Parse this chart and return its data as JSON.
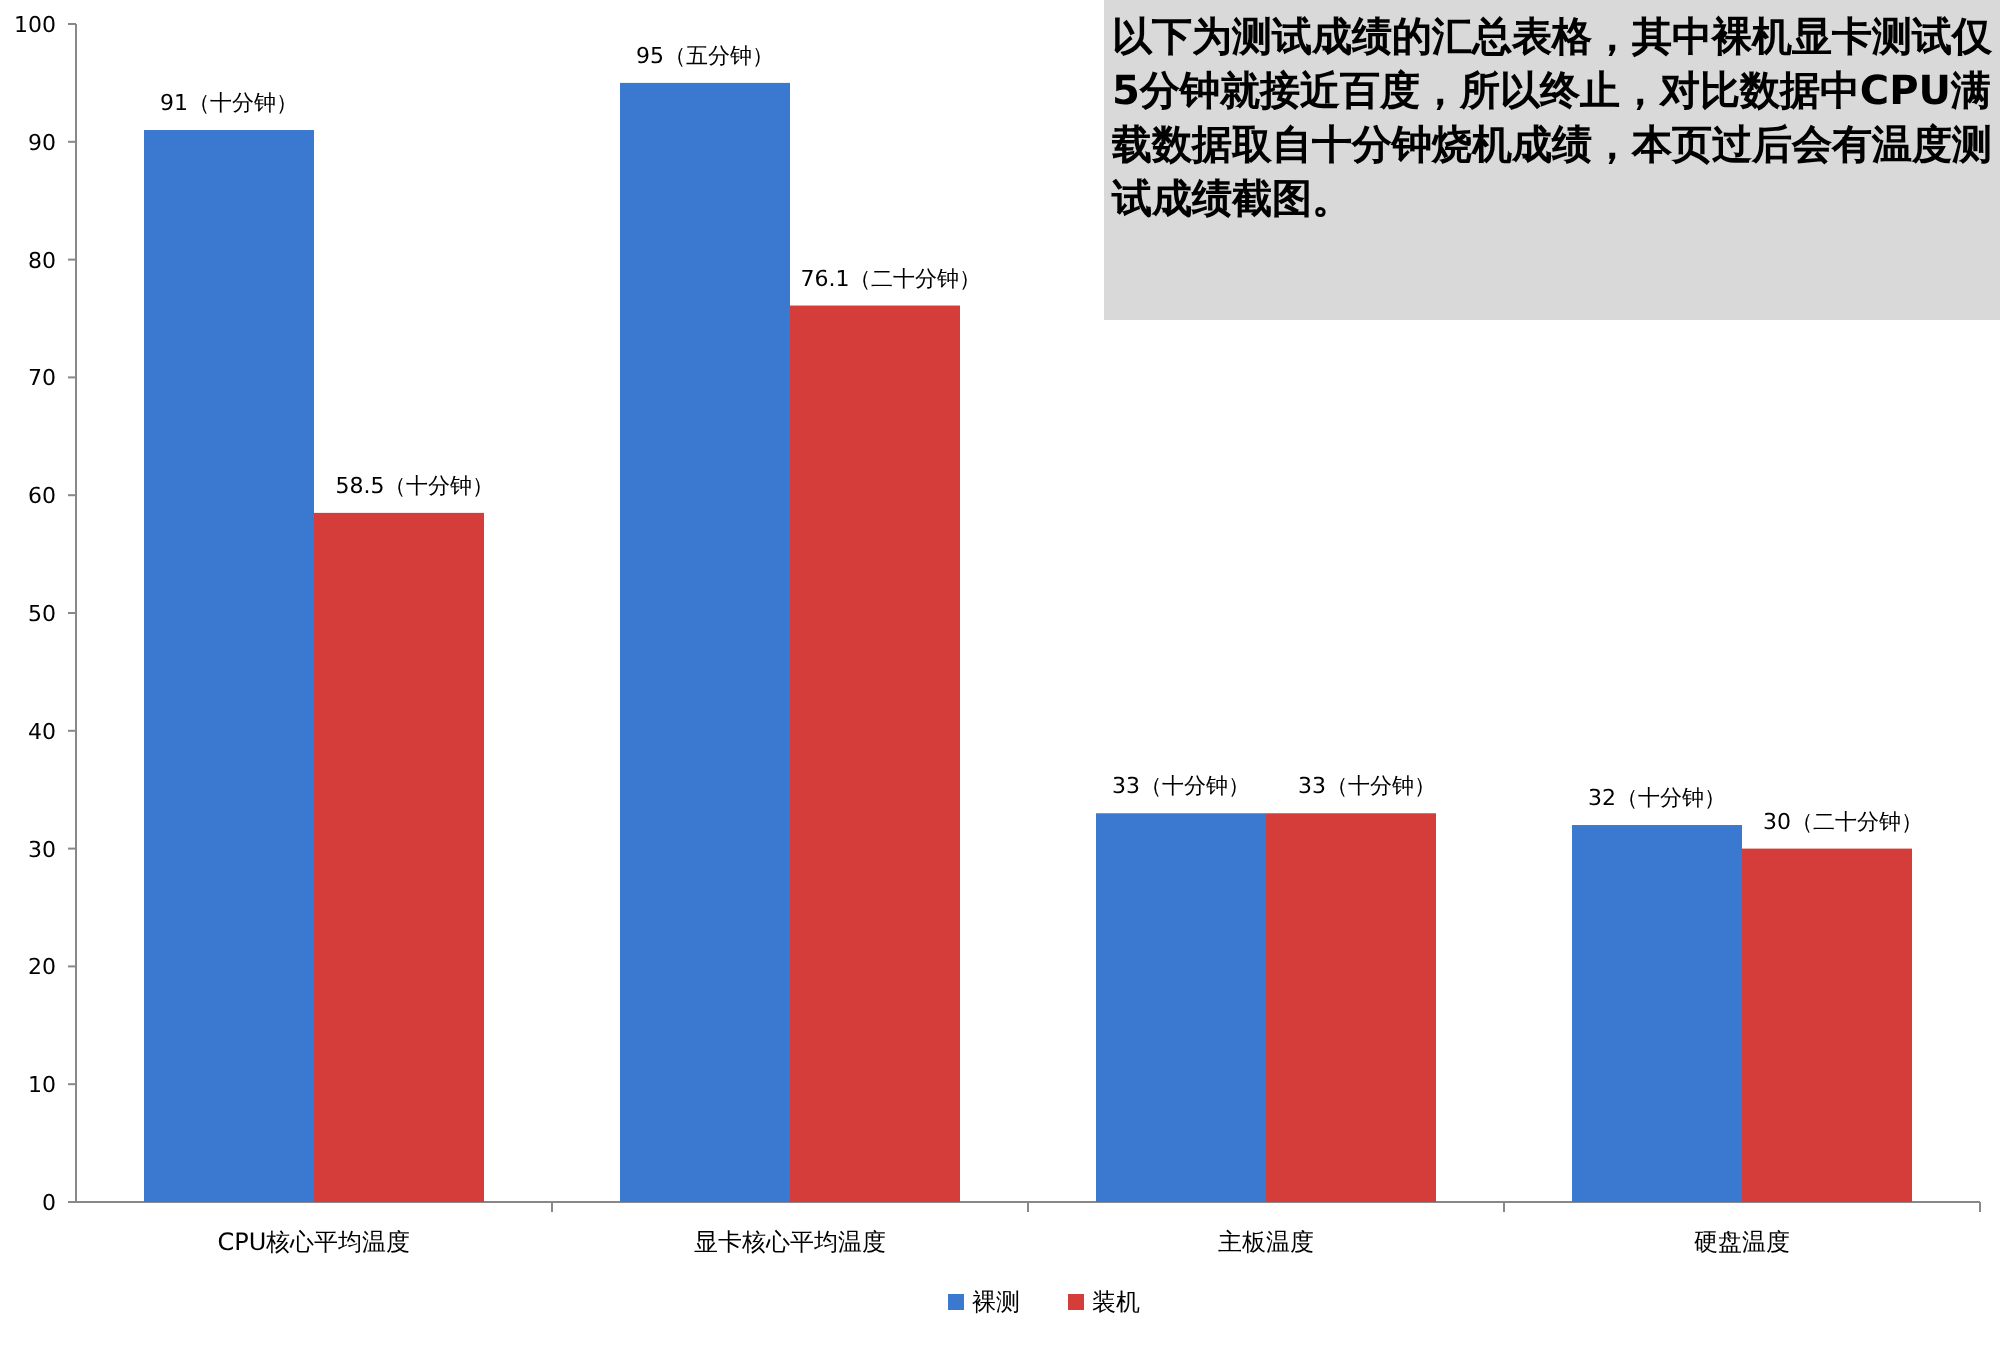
{
  "chart_data": {
    "type": "bar",
    "categories": [
      "CPU核心平均温度",
      "显卡核心平均温度",
      "主板温度",
      "硬盘温度"
    ],
    "series": [
      {
        "name": "裸测",
        "color": "#3b78cf",
        "values": [
          91,
          95,
          33,
          32
        ],
        "value_labels": [
          "91（十分钟）",
          "95（五分钟）",
          "33（十分钟）",
          "32（十分钟）"
        ]
      },
      {
        "name": "装机",
        "color": "#d43d3a",
        "values": [
          58.5,
          76.1,
          33,
          30
        ],
        "value_labels": [
          "58.5（十分钟）",
          "76.1（二十分钟）",
          "33（十分钟）",
          "30（二十分钟）"
        ]
      }
    ],
    "ylim": [
      0,
      100
    ],
    "yticks": [
      0,
      10,
      20,
      30,
      40,
      50,
      60,
      70,
      80,
      90,
      100
    ],
    "grid": false,
    "legend": "bottom",
    "annotations": [
      "以下为测试成绩的汇总表格，其中裸机显卡测试仅5分钟就接近百度，所以终止，对比数据中CPU满载数据取自十分钟烧机成绩，本页过后会有温度测试成绩截图。"
    ]
  }
}
